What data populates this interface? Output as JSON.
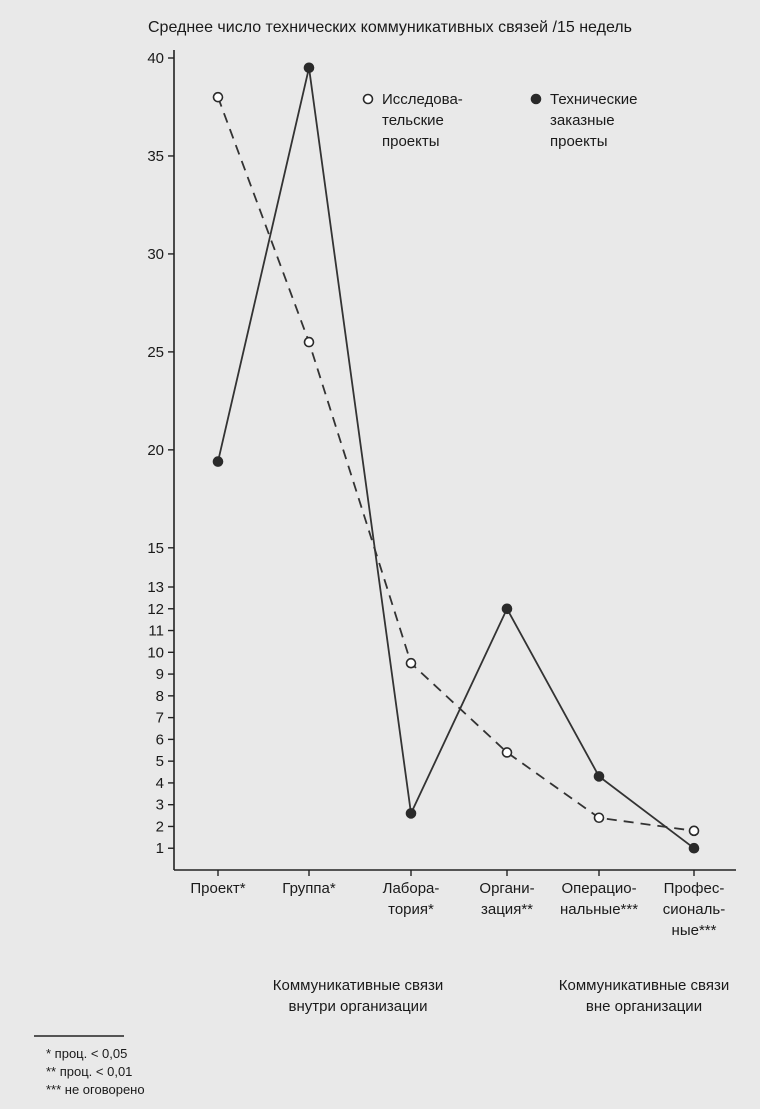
{
  "chart_data": {
    "type": "line",
    "title": "Среднее число технических коммуникативных связей /15 недель",
    "categories": [
      [
        "Проект*"
      ],
      [
        "Группа*"
      ],
      [
        "Лабора-",
        "тория*"
      ],
      [
        "Органи-",
        "зация**"
      ],
      [
        "Операцио-",
        "нальные***"
      ],
      [
        "Профес-",
        "сиональ-",
        "ные***"
      ]
    ],
    "y_ticks": [
      1,
      2,
      3,
      4,
      5,
      6,
      7,
      8,
      9,
      10,
      11,
      12,
      13,
      15,
      20,
      25,
      30,
      35,
      40
    ],
    "ylim": [
      0,
      40
    ],
    "y_scale": "piecewise: 0–13 with step 1, 13–40 with step 5",
    "series": [
      {
        "name": [
          "Исследова-",
          "тельские",
          "проекты"
        ],
        "marker": "open-circle",
        "line_style": "dashed",
        "values": [
          38,
          25.5,
          9.5,
          5.4,
          2.4,
          1.8
        ]
      },
      {
        "name": [
          "Технические",
          "заказные",
          "проекты"
        ],
        "marker": "filled-circle",
        "line_style": "solid",
        "values": [
          19.4,
          39.5,
          2.6,
          12,
          4.3,
          1
        ]
      }
    ],
    "groups": [
      {
        "label": [
          "Коммуникативные связи",
          "внутри организации"
        ],
        "categories": [
          0,
          2
        ]
      },
      {
        "label": [
          "Коммуникативные связи",
          "вне организации"
        ],
        "categories": [
          3,
          5
        ]
      }
    ],
    "notes": [
      "* проц. < 0,05",
      "** проц. < 0,01",
      "*** не оговорено"
    ],
    "legend_position": "top-right",
    "grid": false
  }
}
